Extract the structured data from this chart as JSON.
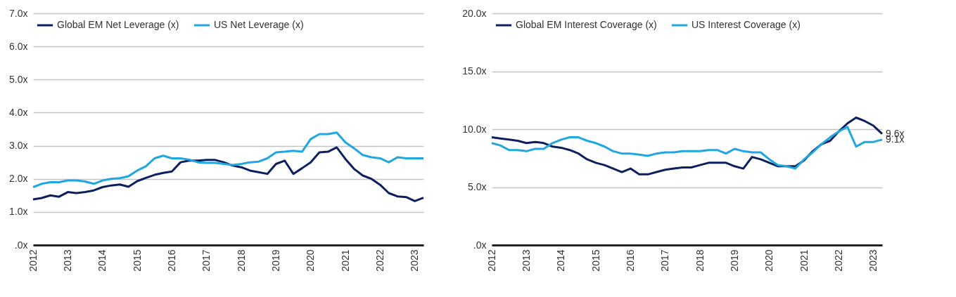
{
  "chart_data": [
    {
      "type": "line",
      "x": [
        2012,
        2012.25,
        2012.5,
        2012.75,
        2013,
        2013.25,
        2013.5,
        2013.75,
        2014,
        2014.25,
        2014.5,
        2014.75,
        2015,
        2015.25,
        2015.5,
        2015.75,
        2016,
        2016.25,
        2016.5,
        2016.75,
        2017,
        2017.25,
        2017.5,
        2017.75,
        2018,
        2018.25,
        2018.5,
        2018.75,
        2019,
        2019.25,
        2019.5,
        2019.75,
        2020,
        2020.25,
        2020.5,
        2020.75,
        2021,
        2021.25,
        2021.5,
        2021.75,
        2022,
        2022.25,
        2022.5,
        2022.75,
        2023,
        2023.25
      ],
      "series": [
        {
          "name": "Global EM Net Leverage (x)",
          "color": "#0c1f5e",
          "values": [
            1.38,
            1.42,
            1.5,
            1.46,
            1.6,
            1.57,
            1.6,
            1.65,
            1.75,
            1.8,
            1.83,
            1.76,
            1.93,
            2.03,
            2.12,
            2.18,
            2.22,
            2.5,
            2.55,
            2.55,
            2.57,
            2.57,
            2.5,
            2.4,
            2.35,
            2.25,
            2.2,
            2.15,
            2.45,
            2.55,
            2.15,
            2.32,
            2.5,
            2.8,
            2.82,
            2.95,
            2.6,
            2.3,
            2.1,
            2.0,
            1.82,
            1.57,
            1.47,
            1.45,
            1.33,
            1.43
          ]
        },
        {
          "name": "US Net Leverage (x)",
          "color": "#1ea7e1",
          "values": [
            1.75,
            1.85,
            1.9,
            1.9,
            1.95,
            1.95,
            1.92,
            1.85,
            1.95,
            2.0,
            2.02,
            2.08,
            2.25,
            2.38,
            2.62,
            2.7,
            2.62,
            2.62,
            2.58,
            2.5,
            2.48,
            2.48,
            2.45,
            2.42,
            2.45,
            2.5,
            2.52,
            2.62,
            2.8,
            2.82,
            2.85,
            2.82,
            3.2,
            3.35,
            3.35,
            3.4,
            3.1,
            2.92,
            2.72,
            2.65,
            2.62,
            2.5,
            2.65,
            2.62,
            2.62,
            2.62
          ]
        }
      ],
      "xlim": [
        2012,
        2023.25
      ],
      "xticks": [
        2012,
        2013,
        2014,
        2015,
        2016,
        2017,
        2018,
        2019,
        2020,
        2021,
        2022,
        2023
      ],
      "ylim": [
        0,
        7
      ],
      "yticks": [
        {
          "value": 0,
          "label": ".0x"
        },
        {
          "value": 1,
          "label": "1.0x"
        },
        {
          "value": 2,
          "label": "2.0x"
        },
        {
          "value": 3,
          "label": "3.0x"
        },
        {
          "value": 4,
          "label": "4.0x"
        },
        {
          "value": 5,
          "label": "5.0x"
        },
        {
          "value": 6,
          "label": "6.0x"
        },
        {
          "value": 7,
          "label": "7.0x"
        }
      ],
      "grid": "y",
      "legend": "top"
    },
    {
      "type": "line",
      "x": [
        2012,
        2012.25,
        2012.5,
        2012.75,
        2013,
        2013.25,
        2013.5,
        2013.75,
        2014,
        2014.25,
        2014.5,
        2014.75,
        2015,
        2015.25,
        2015.5,
        2015.75,
        2016,
        2016.25,
        2016.5,
        2016.75,
        2017,
        2017.25,
        2017.5,
        2017.75,
        2018,
        2018.25,
        2018.5,
        2018.75,
        2019,
        2019.25,
        2019.5,
        2019.75,
        2020,
        2020.25,
        2020.5,
        2020.75,
        2021,
        2021.25,
        2021.5,
        2021.75,
        2022,
        2022.25,
        2022.5,
        2022.75,
        2023,
        2023.25
      ],
      "series": [
        {
          "name": "Global EM Interest Coverage (x)",
          "color": "#0c1f5e",
          "values": [
            9.3,
            9.2,
            9.1,
            9.0,
            8.8,
            8.9,
            8.8,
            8.5,
            8.4,
            8.2,
            7.9,
            7.4,
            7.1,
            6.9,
            6.6,
            6.3,
            6.6,
            6.1,
            6.1,
            6.3,
            6.5,
            6.6,
            6.7,
            6.7,
            6.9,
            7.1,
            7.1,
            7.1,
            6.8,
            6.6,
            7.6,
            7.4,
            7.1,
            6.8,
            6.8,
            6.8,
            7.3,
            8.1,
            8.7,
            9.0,
            9.8,
            10.5,
            11.0,
            10.7,
            10.3,
            9.6
          ]
        },
        {
          "name": "US Interest Coverage (x)",
          "color": "#1ea7e1",
          "values": [
            8.8,
            8.6,
            8.2,
            8.2,
            8.1,
            8.3,
            8.3,
            8.8,
            9.1,
            9.3,
            9.3,
            9.0,
            8.8,
            8.5,
            8.1,
            7.9,
            7.9,
            7.8,
            7.7,
            7.9,
            8.0,
            8.0,
            8.1,
            8.1,
            8.1,
            8.2,
            8.2,
            7.9,
            8.3,
            8.1,
            8.0,
            8.0,
            7.4,
            6.9,
            6.8,
            6.6,
            7.4,
            8.0,
            8.7,
            9.3,
            9.8,
            10.2,
            8.5,
            8.9,
            8.9,
            9.1
          ]
        }
      ],
      "xlim": [
        2012,
        2023.25
      ],
      "xticks": [
        2012,
        2013,
        2014,
        2015,
        2016,
        2017,
        2018,
        2019,
        2020,
        2021,
        2022,
        2023
      ],
      "ylim": [
        0,
        20
      ],
      "yticks": [
        {
          "value": 0,
          "label": ".0x"
        },
        {
          "value": 5,
          "label": "5.0x"
        },
        {
          "value": 10,
          "label": "10.0x"
        },
        {
          "value": 15,
          "label": "15.0x"
        },
        {
          "value": 20,
          "label": "20.0x"
        }
      ],
      "grid": "y",
      "legend": "top",
      "annotations": [
        {
          "text": "9.6x",
          "x": 2023.25,
          "y": 9.6
        },
        {
          "text": "9.1x",
          "x": 2023.25,
          "y": 9.1
        }
      ]
    }
  ]
}
